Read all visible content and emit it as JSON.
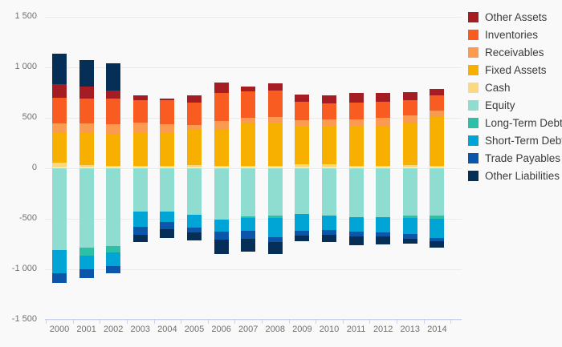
{
  "chart_data": {
    "type": "bar",
    "stacked": true,
    "title": "",
    "xlabel": "",
    "ylabel": "",
    "grid": true,
    "legend_position": "right",
    "ylim": [
      -1500,
      1500
    ],
    "yticks": [
      {
        "value": 1500,
        "label": "1 500"
      },
      {
        "value": 1000,
        "label": "1 000"
      },
      {
        "value": 500,
        "label": "500"
      },
      {
        "value": 0,
        "label": "0"
      },
      {
        "value": -500,
        "label": "-500"
      },
      {
        "value": -1000,
        "label": "-1 000"
      },
      {
        "value": -1500,
        "label": "-1 500"
      }
    ],
    "categories": [
      "2000",
      "2001",
      "2002",
      "2003",
      "2004",
      "2005",
      "2006",
      "2007",
      "2008",
      "2009",
      "2010",
      "2011",
      "2012",
      "2013",
      "2014"
    ],
    "positive_stack_order": [
      "Cash",
      "Fixed Assets",
      "Receivables",
      "Inventories",
      "Other Assets",
      "Other Liabilities"
    ],
    "negative_stack_order": [
      "Equity",
      "Long-Term Debt",
      "Short-Term Debt",
      "Trade Payables",
      "Other Liabilities"
    ],
    "series": [
      {
        "name": "Other Assets",
        "color": "#a51c23",
        "values": [
          137,
          121,
          84,
          45,
          13,
          71,
          106,
          45,
          74,
          67,
          79,
          98,
          90,
          79,
          68
        ]
      },
      {
        "name": "Inventories",
        "color": "#f85c20",
        "values": [
          254,
          244,
          252,
          220,
          238,
          217,
          275,
          264,
          260,
          185,
          159,
          167,
          159,
          151,
          151
        ]
      },
      {
        "name": "Receivables",
        "color": "#fb9a51",
        "values": [
          90,
          95,
          98,
          100,
          79,
          48,
          87,
          53,
          58,
          53,
          59,
          63,
          87,
          79,
          61
        ]
      },
      {
        "name": "Fixed Assets",
        "color": "#f8b000",
        "values": [
          298,
          315,
          313,
          333,
          336,
          352,
          362,
          425,
          430,
          387,
          387,
          397,
          384,
          413,
          482
        ]
      },
      {
        "name": "Cash",
        "color": "#fbd983",
        "values": [
          49,
          30,
          22,
          17,
          17,
          28,
          17,
          16,
          16,
          32,
          32,
          17,
          22,
          28,
          22
        ]
      },
      {
        "name": "Equity",
        "color": "#8fdcd0",
        "values": [
          -816,
          -792,
          -771,
          -433,
          -433,
          -467,
          -512,
          -478,
          -472,
          -456,
          -472,
          -488,
          -488,
          -472,
          -472
        ]
      },
      {
        "name": "Long-Term Debt",
        "color": "#2cc1a6",
        "values": [
          0,
          -79,
          -66,
          0,
          0,
          0,
          0,
          -21,
          -21,
          0,
          0,
          0,
          0,
          -24,
          -34
        ]
      },
      {
        "name": "Short-Term Debt",
        "color": "#00a5d5",
        "values": [
          -225,
          -133,
          -137,
          -153,
          -106,
          -125,
          -119,
          -127,
          -190,
          -167,
          -145,
          -145,
          -148,
          -161,
          -186
        ]
      },
      {
        "name": "Trade Payables",
        "color": "#0b56ab",
        "values": [
          -95,
          -85,
          -69,
          -75,
          -69,
          -48,
          -82,
          -79,
          -48,
          -48,
          -43,
          -45,
          -42,
          -43,
          -32
        ]
      },
      {
        "name": "Other Liabilities",
        "color": "#052f57",
        "values": [
          304,
          262,
          267,
          -71,
          -85,
          -79,
          -143,
          -125,
          -119,
          -56,
          -71,
          -85,
          -79,
          -50,
          -66
        ]
      }
    ]
  }
}
